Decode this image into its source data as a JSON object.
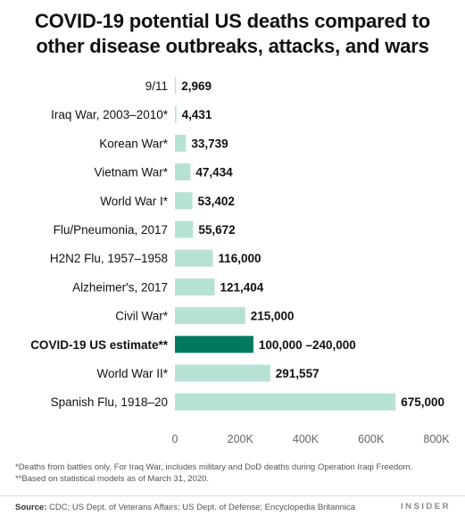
{
  "title_lines": [
    "COVID-19 potential US deaths compared to",
    "other disease outbreaks, attacks, and wars"
  ],
  "colors": {
    "bar": "#b6e2d6",
    "highlight": "#007a5e",
    "axis_text": "#666666",
    "label_text": "#111111"
  },
  "chart_data": {
    "type": "bar",
    "orientation": "horizontal",
    "xlim": [
      0,
      800000
    ],
    "x_ticks": [
      0,
      200000,
      400000,
      600000,
      800000
    ],
    "x_tick_labels": [
      "0",
      "200K",
      "400K",
      "600K",
      "800K"
    ],
    "grid": false,
    "categories": [
      "9/11",
      "Iraq War, 2003–2010*",
      "Korean War*",
      "Vietnam War*",
      "World War I*",
      "Flu/Pneumonia, 2017",
      "H2N2 Flu, 1957–1958",
      "Alzheimer's, 2017",
      "Civil War*",
      "COVID-19 US estimate**",
      "World War II*",
      "Spanish Flu, 1918–20"
    ],
    "values": [
      2969,
      4431,
      33739,
      47434,
      53402,
      55672,
      116000,
      121404,
      215000,
      240000,
      291557,
      675000
    ],
    "range_low": [
      null,
      null,
      null,
      null,
      null,
      null,
      null,
      null,
      null,
      100000,
      null,
      null
    ],
    "value_labels": [
      "2,969",
      "4,431",
      "33,739",
      "47,434",
      "53,402",
      "55,672",
      "116,000",
      "121,404",
      "215,000",
      "100,000 –240,000",
      "291,557",
      "675,000"
    ],
    "highlight_index": 9
  },
  "footnotes": [
    "*Deaths from battles only. For Iraq War, includes military and DoD deaths during Operation Iraqi Freedom.",
    "**Based on statistical models as of March 31, 2020."
  ],
  "source": {
    "label": "Source:",
    "text": "CDC; US Dept. of Veterans Affairs; US Dept. of Defense; Encyclopedia Britannica"
  },
  "brand": "INSIDER"
}
